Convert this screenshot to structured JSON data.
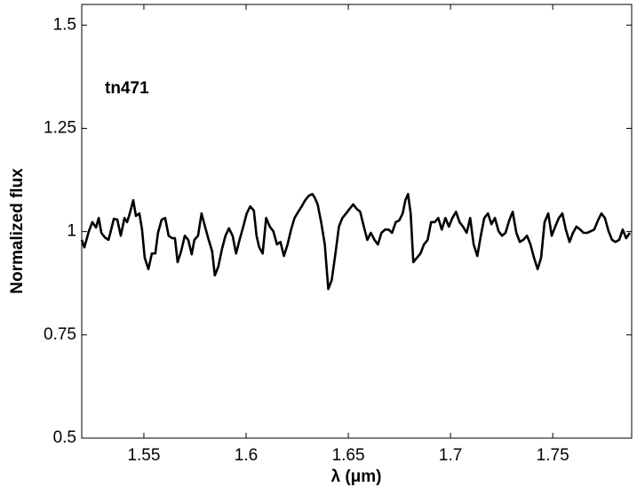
{
  "chart_data": {
    "type": "line",
    "annotation": "tn471",
    "xlabel": "λ (μm)",
    "ylabel": "Normalized flux",
    "color": "#000000",
    "xlim": [
      1.5196,
      1.7886
    ],
    "ylim": [
      0.5,
      1.55
    ],
    "xticks": [
      1.55,
      1.6,
      1.65,
      1.7,
      1.75
    ],
    "yticks": [
      0.5,
      0.75,
      1,
      1.25,
      1.5
    ],
    "x": [
      1.5196,
      1.5209,
      1.5231,
      1.5248,
      1.5266,
      1.5279,
      1.5292,
      1.5309,
      1.5327,
      1.534,
      1.5353,
      1.537,
      1.5387,
      1.5405,
      1.5418,
      1.5431,
      1.5448,
      1.5461,
      1.5478,
      1.5491,
      1.5504,
      1.5522,
      1.5539,
      1.5556,
      1.5569,
      1.5587,
      1.5604,
      1.5621,
      1.5639,
      1.5652,
      1.5665,
      1.5682,
      1.57,
      1.5717,
      1.5734,
      1.5747,
      1.5765,
      1.5782,
      1.5799,
      1.5817,
      1.5834,
      1.5847,
      1.5864,
      1.5882,
      1.5899,
      1.5916,
      1.5934,
      1.5951,
      1.5968,
      1.5986,
      1.6003,
      1.602,
      1.6038,
      1.6051,
      1.6064,
      1.6081,
      1.6098,
      1.6116,
      1.6133,
      1.6151,
      1.6168,
      1.6185,
      1.6203,
      1.622,
      1.6237,
      1.6255,
      1.6272,
      1.6289,
      1.6307,
      1.6324,
      1.6337,
      1.635,
      1.6367,
      1.6385,
      1.6402,
      1.6419,
      1.6437,
      1.6454,
      1.6471,
      1.6489,
      1.6506,
      1.6524,
      1.6541,
      1.6558,
      1.6576,
      1.6593,
      1.661,
      1.6628,
      1.6645,
      1.6662,
      1.668,
      1.6697,
      1.6714,
      1.6732,
      1.6749,
      1.6766,
      1.6779,
      1.6792,
      1.6805,
      1.6818,
      1.6836,
      1.6853,
      1.687,
      1.6888,
      1.6905,
      1.6923,
      1.694,
      1.6957,
      1.6975,
      1.6992,
      1.7009,
      1.7027,
      1.7044,
      1.7061,
      1.7079,
      1.7096,
      1.7113,
      1.7131,
      1.7148,
      1.7165,
      1.7183,
      1.72,
      1.7217,
      1.7235,
      1.7252,
      1.7269,
      1.7287,
      1.7304,
      1.7322,
      1.7339,
      1.7356,
      1.7374,
      1.7391,
      1.7408,
      1.7426,
      1.7443,
      1.746,
      1.7478,
      1.7495,
      1.7512,
      1.753,
      1.7547,
      1.7564,
      1.7582,
      1.7599,
      1.7616,
      1.7634,
      1.7651,
      1.7668,
      1.7686,
      1.7703,
      1.7721,
      1.7738,
      1.7755,
      1.7773,
      1.779,
      1.7807,
      1.7825,
      1.7842,
      1.7859,
      1.7877
    ],
    "values": [
      0.98,
      0.962,
      1.001,
      1.023,
      1.01,
      1.033,
      0.997,
      0.986,
      0.98,
      1.005,
      1.031,
      1.029,
      0.99,
      1.033,
      1.023,
      1.044,
      1.076,
      1.038,
      1.044,
      1.005,
      0.937,
      0.909,
      0.947,
      0.947,
      0.997,
      1.029,
      1.033,
      0.99,
      0.984,
      0.984,
      0.926,
      0.952,
      0.99,
      0.98,
      0.945,
      0.98,
      0.99,
      1.044,
      1.012,
      0.98,
      0.952,
      0.894,
      0.915,
      0.958,
      0.99,
      1.008,
      0.99,
      0.947,
      0.98,
      1.012,
      1.044,
      1.061,
      1.051,
      0.99,
      0.962,
      0.947,
      1.033,
      1.012,
      1.001,
      0.969,
      0.975,
      0.941,
      0.969,
      1.005,
      1.033,
      1.048,
      1.061,
      1.076,
      1.087,
      1.091,
      1.081,
      1.066,
      1.023,
      0.969,
      0.861,
      0.883,
      0.947,
      1.012,
      1.033,
      1.044,
      1.055,
      1.066,
      1.055,
      1.048,
      1.012,
      0.98,
      0.997,
      0.98,
      0.969,
      0.997,
      1.005,
      1.005,
      0.997,
      1.023,
      1.027,
      1.044,
      1.076,
      1.091,
      1.044,
      0.926,
      0.937,
      0.947,
      0.969,
      0.98,
      1.023,
      1.023,
      1.033,
      1.005,
      1.033,
      1.012,
      1.033,
      1.048,
      1.023,
      1.012,
      0.997,
      1.033,
      0.969,
      0.941,
      0.99,
      1.033,
      1.044,
      1.018,
      1.033,
      1.001,
      0.99,
      0.997,
      1.027,
      1.048,
      0.997,
      0.975,
      0.98,
      0.99,
      0.969,
      0.937,
      0.909,
      0.937,
      1.023,
      1.044,
      0.99,
      1.012,
      1.033,
      1.044,
      1.005,
      0.975,
      0.997,
      1.012,
      1.005,
      0.997,
      0.997,
      1.001,
      1.005,
      1.027,
      1.044,
      1.033,
      1.001,
      0.98,
      0.975,
      0.98,
      1.005,
      0.984,
      0.997
    ]
  }
}
